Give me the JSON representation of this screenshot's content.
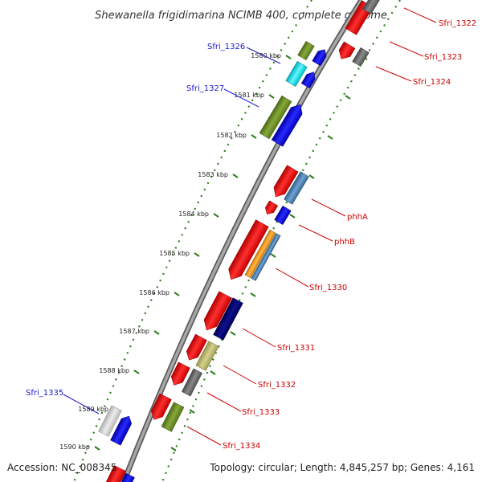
{
  "title": "Shewanella frigidimarina NCIMB 400, complete genome",
  "footer": {
    "accession": "Accession: NC_008345",
    "topology": "Topology: circular; Length: 4,845,257 bp; Genes: 4,161"
  },
  "ticks": [
    "1580 kbp",
    "1581 kbp",
    "1582 kbp",
    "1583 kbp",
    "1584 kbp",
    "1585 kbp",
    "1586 kbp",
    "1587 kbp",
    "1588 kbp",
    "1589 kbp",
    "1590 kbp"
  ],
  "gene_labels": {
    "sfri_1322": "Sfri_1322",
    "sfri_1323": "Sfri_1323",
    "sfri_1324": "Sfri_1324",
    "sfri_1326": "Sfri_1326",
    "sfri_1327": "Sfri_1327",
    "phha": "phhA",
    "phhb": "phhB",
    "sfri_1330": "Sfri_1330",
    "sfri_1331": "Sfri_1331",
    "sfri_1332": "Sfri_1332",
    "sfri_1333": "Sfri_1333",
    "sfri_1334": "Sfri_1334",
    "sfri_1335": "Sfri_1335"
  },
  "colors": {
    "backbone": "#8c8c8c",
    "tick": "#2e7d1e",
    "red_gene": "#ff0000",
    "blue_gene": "#0000ee",
    "navy_gene": "#00007a",
    "olive_gene": "#6b8e23",
    "khaki_gene": "#bdb76b",
    "cyan_gene": "#00e5ee",
    "steel_gene": "#4682b4",
    "orange_gene": "#ff9900",
    "grey_gene": "#6e6e6e",
    "light_gene": "#d0d0d0",
    "label_red": "#cc0000",
    "label_blue": "#1a1acc"
  }
}
